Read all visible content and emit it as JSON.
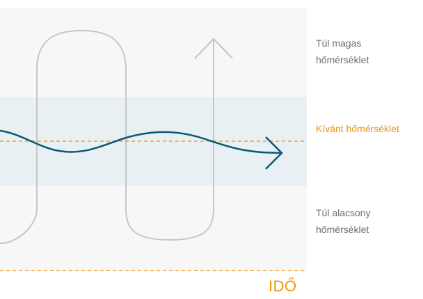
{
  "labels": {
    "too_high_line1": "Túl magas",
    "too_high_line2": "hőmérséklet",
    "desired": "Kívánt hőmérséklet",
    "too_low_line1": "Túl alacsony",
    "too_low_line2": "hőmérséklet",
    "time_axis": "IDŐ"
  },
  "colors": {
    "accent_orange": "#f39200",
    "comfort_band": "#e8f0f3",
    "outer_band": "#f7f7f7",
    "regulated_curve": "#0b5874",
    "unregulated_curve": "#c6c6c6",
    "label_text": "#6e6e6e"
  }
}
